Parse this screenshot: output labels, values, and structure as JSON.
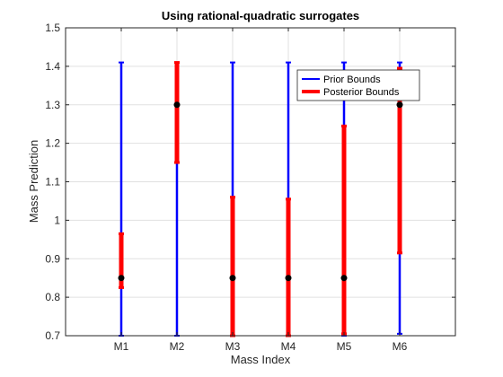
{
  "chart_data": {
    "type": "errorbar",
    "title": "Using rational-quadratic surrogates",
    "xlabel": "Mass Index",
    "ylabel": "Mass Prediction",
    "categories": [
      "M1",
      "M2",
      "M3",
      "M4",
      "M5",
      "M6"
    ],
    "xlim": [
      0,
      7
    ],
    "ylim": [
      0.7,
      1.5
    ],
    "yticks": [
      "0.7",
      "0.8",
      "0.9",
      "1",
      "1.1",
      "1.2",
      "1.3",
      "1.4",
      "1.5"
    ],
    "grid": true,
    "legend_position": "top-right",
    "series": [
      {
        "name": "Prior Bounds",
        "color": "#0000ff",
        "lower": [
          0.7,
          0.7,
          0.7,
          0.7,
          0.7,
          0.705
        ],
        "upper": [
          1.41,
          1.41,
          1.41,
          1.41,
          1.41,
          1.41
        ]
      },
      {
        "name": "Posterior Bounds",
        "color": "#ff0000",
        "lower": [
          0.825,
          1.15,
          0.7,
          0.7,
          0.705,
          0.915
        ],
        "upper": [
          0.965,
          1.41,
          1.06,
          1.055,
          1.245,
          1.395
        ]
      }
    ],
    "points": [
      0.85,
      1.3,
      0.85,
      0.85,
      0.85,
      1.3
    ],
    "point_color": "#000000"
  }
}
